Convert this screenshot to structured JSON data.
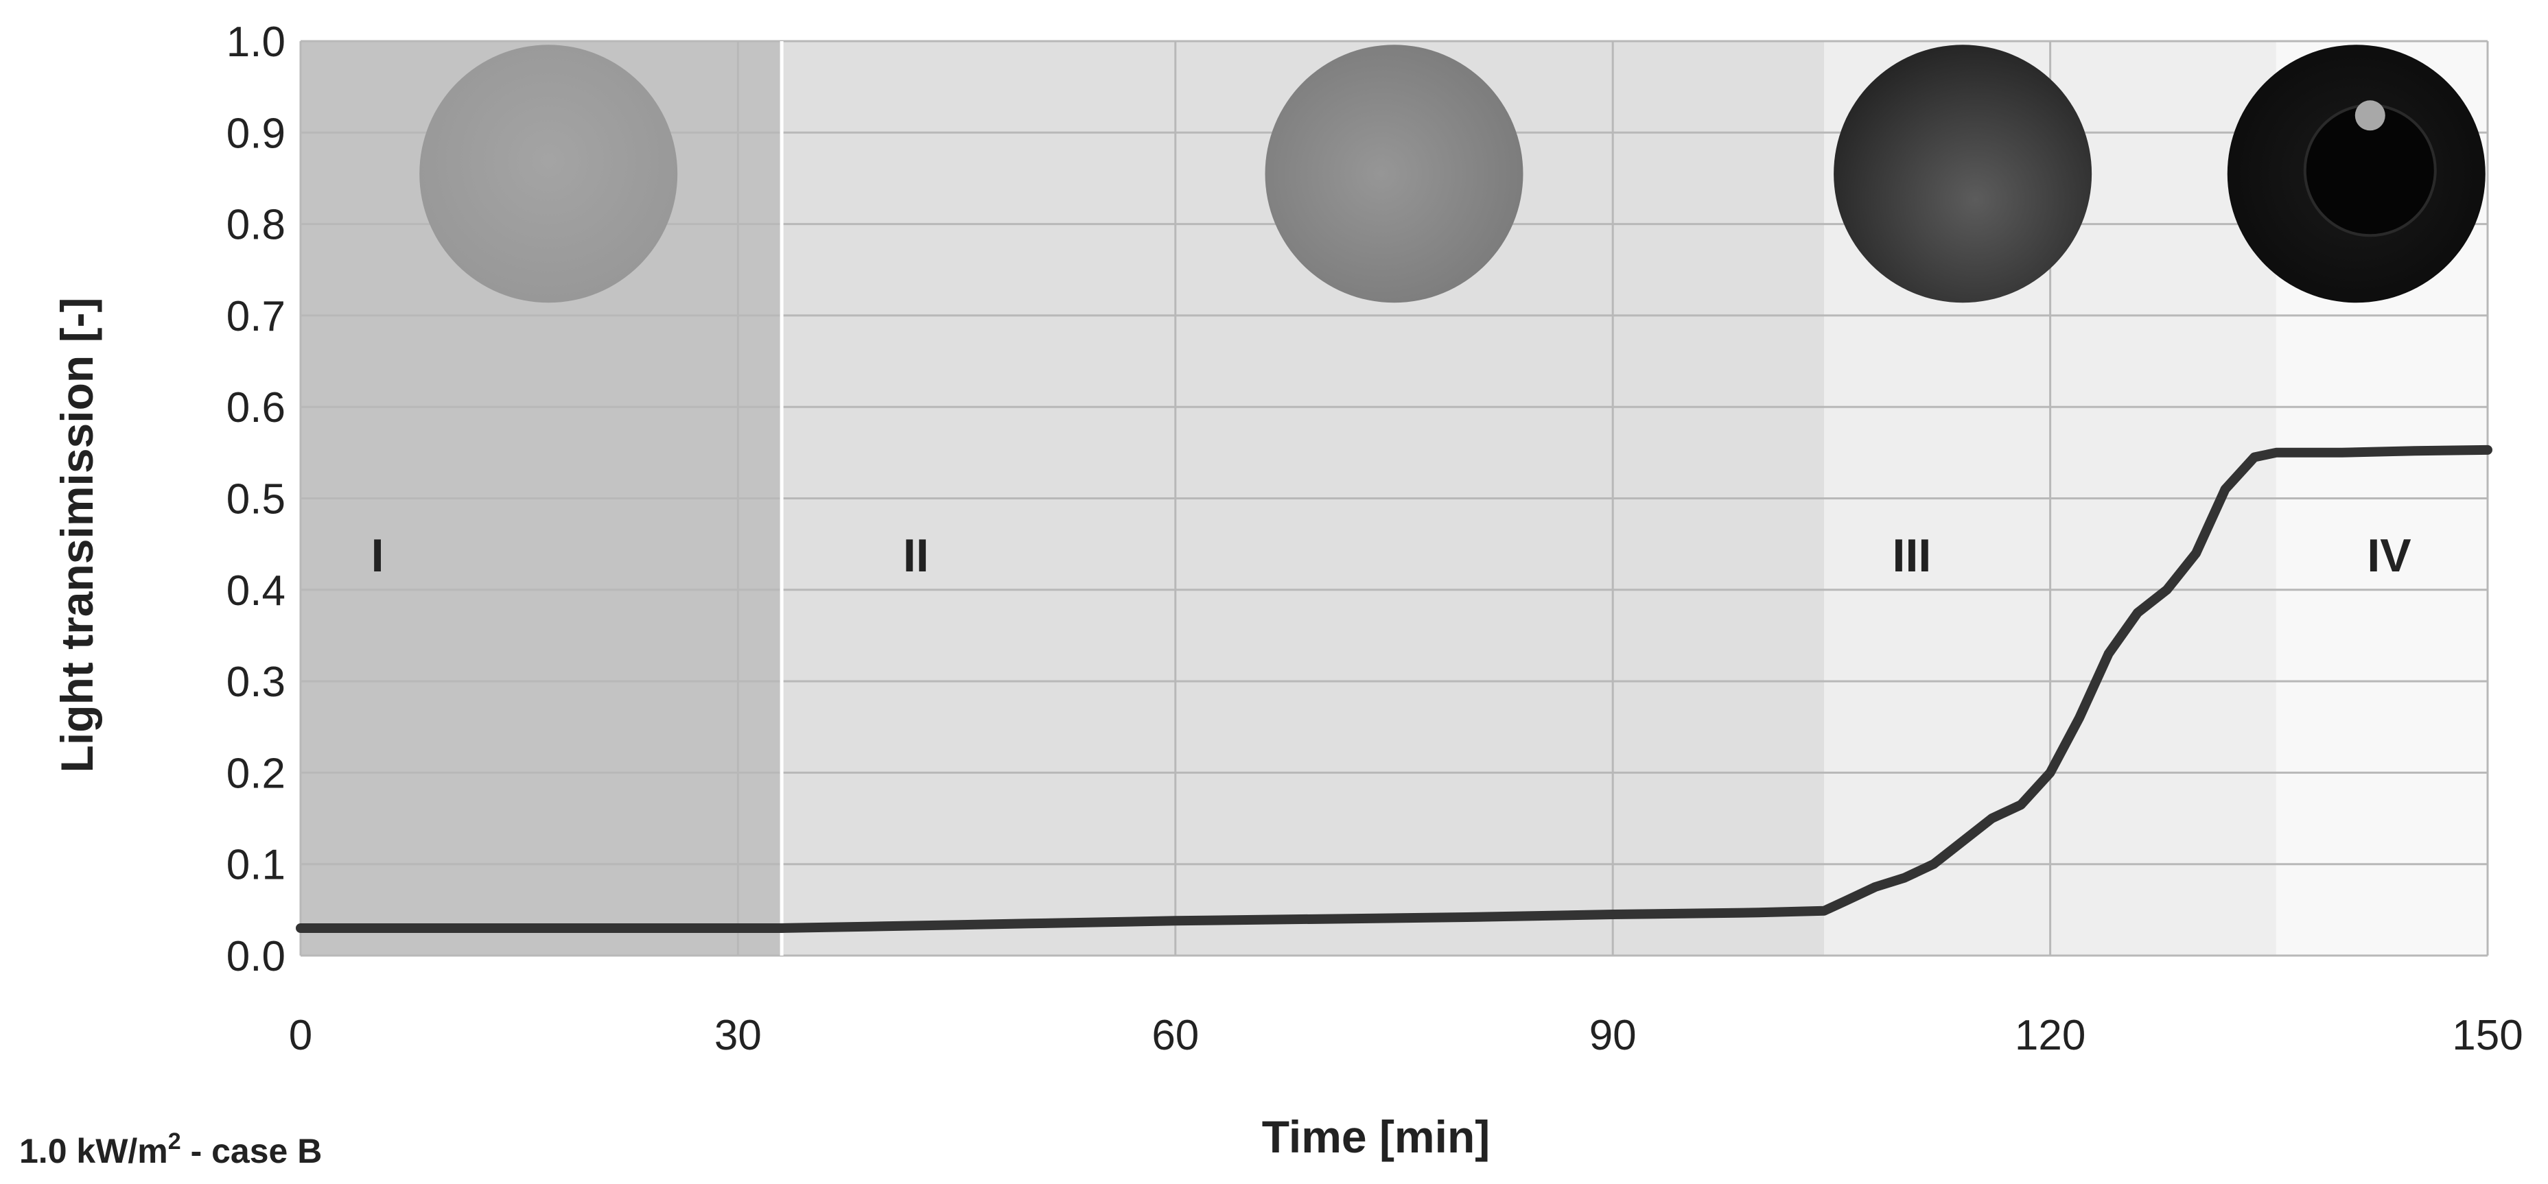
{
  "caption": {
    "flux": "1.0 kW/m",
    "exponent": "2",
    "case": " - case B"
  },
  "chart_data": {
    "type": "line",
    "xlabel": "Time [min]",
    "ylabel": "Light transimission [-]",
    "xlim": [
      0,
      150
    ],
    "ylim": [
      0,
      1.0
    ],
    "x_ticks": [
      0,
      30,
      60,
      90,
      120,
      150
    ],
    "x_tick_labels": [
      "0",
      "30",
      "60",
      "90",
      "120",
      "150"
    ],
    "y_ticks": [
      0.0,
      0.1,
      0.2,
      0.3,
      0.4,
      0.5,
      0.6,
      0.7,
      0.8,
      0.9,
      1.0
    ],
    "y_tick_labels": [
      "0.0",
      "0.1",
      "0.2",
      "0.3",
      "0.4",
      "0.5",
      "0.6",
      "0.7",
      "0.8",
      "0.9",
      "1.0"
    ],
    "grid": true,
    "legend": "none",
    "series": [
      {
        "color": "#333333",
        "x": [
          0,
          10,
          20,
          30,
          33,
          40,
          50,
          60,
          70,
          80,
          90,
          100,
          104.5,
          106,
          108,
          110,
          112,
          114,
          116,
          118,
          120,
          122,
          124,
          126,
          128,
          130,
          132,
          134,
          135.5,
          137,
          140,
          145,
          150
        ],
        "y": [
          0.03,
          0.03,
          0.03,
          0.03,
          0.03,
          0.032,
          0.035,
          0.038,
          0.04,
          0.042,
          0.045,
          0.047,
          0.049,
          0.06,
          0.075,
          0.085,
          0.1,
          0.125,
          0.15,
          0.165,
          0.2,
          0.26,
          0.33,
          0.375,
          0.4,
          0.44,
          0.51,
          0.545,
          0.55,
          0.55,
          0.55,
          0.552,
          0.553
        ]
      }
    ],
    "phases": [
      {
        "label": "I",
        "start": 0,
        "end": 33,
        "color": "#c3c3c3"
      },
      {
        "label": "II",
        "start": 33,
        "end": 104.5,
        "color": "#dfdfdf"
      },
      {
        "label": "III",
        "start": 104.5,
        "end": 135.5,
        "color": "#eeeeee"
      },
      {
        "label": "IV",
        "start": 135.5,
        "end": 150,
        "color": "#f8f8f8"
      }
    ],
    "specimen_photos": [
      {
        "phase": "I",
        "x": 17,
        "shade": "light-grey"
      },
      {
        "phase": "II",
        "x": 75,
        "shade": "grey"
      },
      {
        "phase": "III",
        "x": 114,
        "shade": "dark-grey"
      },
      {
        "phase": "IV",
        "x": 141,
        "shade": "black"
      }
    ]
  }
}
